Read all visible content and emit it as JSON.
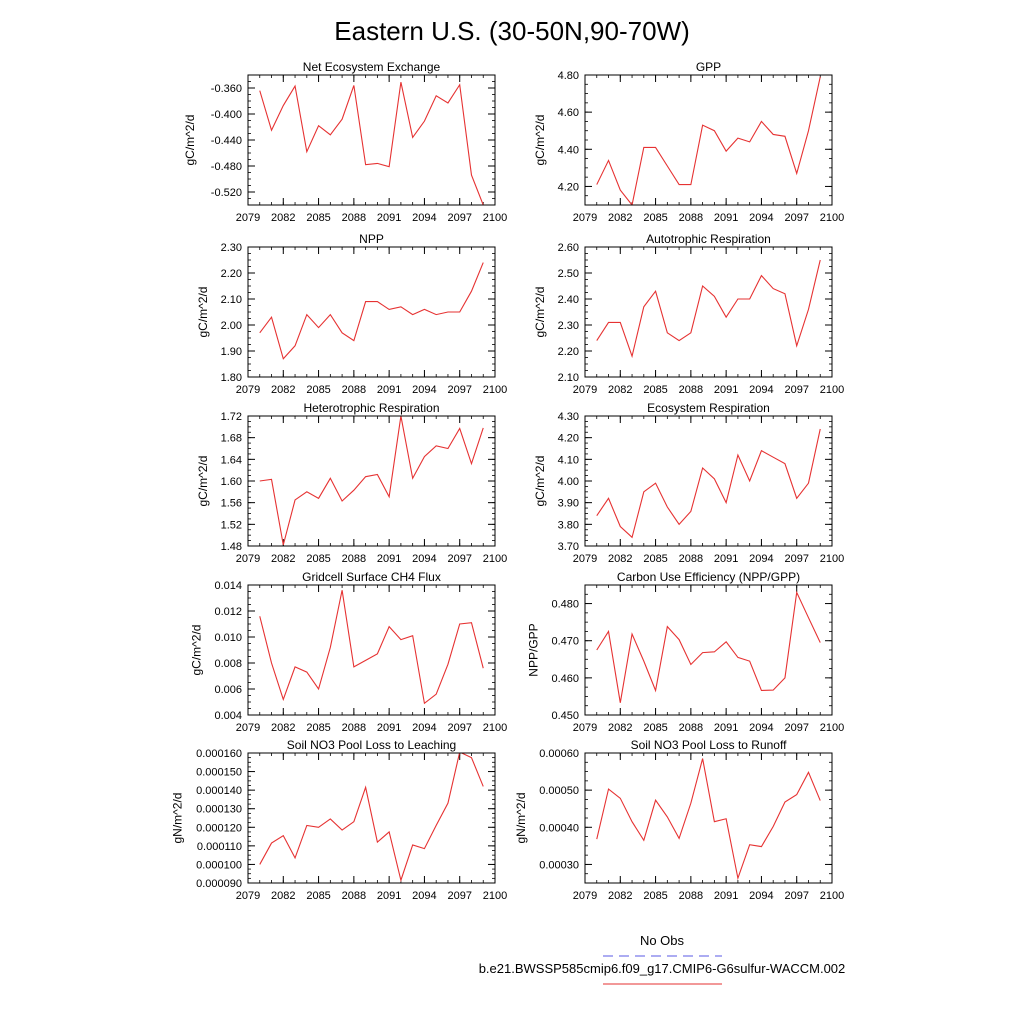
{
  "figure": {
    "title": "Eastern U.S. (30-50N,90-70W)",
    "legend": {
      "obs_label": "No Obs",
      "obs_color": "#5a5ae6",
      "model_label": "b.e21.BWSSP585cmip6.f09_g17.CMIP6-G6sulfur-WACCM.002",
      "model_color": "#e63232"
    }
  },
  "chart_data": [
    {
      "type": "line",
      "title": "Net Ecosystem Exchange",
      "ylabel": "gC/m^2/d",
      "xlim": [
        2079,
        2100
      ],
      "xticks": [
        "2079",
        "2082",
        "2085",
        "2088",
        "2091",
        "2094",
        "2097",
        "2100"
      ],
      "ylim": [
        -0.54,
        -0.34
      ],
      "yticks": [
        "-0.360",
        "-0.400",
        "-0.440",
        "-0.480",
        "-0.520"
      ],
      "series": [
        {
          "x": [
            2080,
            2081,
            2082,
            2083,
            2084,
            2085,
            2086,
            2087,
            2088,
            2089,
            2090,
            2091,
            2092,
            2093,
            2094,
            2095,
            2096,
            2097,
            2098,
            2099
          ],
          "y": [
            -0.364,
            -0.425,
            -0.387,
            -0.357,
            -0.458,
            -0.418,
            -0.432,
            -0.408,
            -0.356,
            -0.478,
            -0.476,
            -0.481,
            -0.351,
            -0.436,
            -0.411,
            -0.372,
            -0.383,
            -0.355,
            -0.494,
            -0.54
          ]
        }
      ]
    },
    {
      "type": "line",
      "title": "GPP",
      "ylabel": "gC/m^2/d",
      "xlim": [
        2079,
        2100
      ],
      "xticks": [
        "2079",
        "2082",
        "2085",
        "2088",
        "2091",
        "2094",
        "2097",
        "2100"
      ],
      "ylim": [
        4.1,
        4.8
      ],
      "yticks": [
        "4.20",
        "4.40",
        "4.60",
        "4.80"
      ],
      "series": [
        {
          "x": [
            2080,
            2081,
            2082,
            2083,
            2084,
            2085,
            2086,
            2087,
            2088,
            2089,
            2090,
            2091,
            2092,
            2093,
            2094,
            2095,
            2096,
            2097,
            2098,
            2099
          ],
          "y": [
            4.21,
            4.34,
            4.18,
            4.1,
            4.41,
            4.41,
            4.31,
            4.21,
            4.21,
            4.53,
            4.5,
            4.39,
            4.46,
            4.44,
            4.55,
            4.48,
            4.47,
            4.27,
            4.5,
            4.79
          ]
        }
      ]
    },
    {
      "type": "line",
      "title": "NPP",
      "ylabel": "gC/m^2/d",
      "xlim": [
        2079,
        2100
      ],
      "xticks": [
        "2079",
        "2082",
        "2085",
        "2088",
        "2091",
        "2094",
        "2097",
        "2100"
      ],
      "ylim": [
        1.8,
        2.3
      ],
      "yticks": [
        "1.80",
        "1.90",
        "2.00",
        "2.10",
        "2.20",
        "2.30"
      ],
      "series": [
        {
          "x": [
            2080,
            2081,
            2082,
            2083,
            2084,
            2085,
            2086,
            2087,
            2088,
            2089,
            2090,
            2091,
            2092,
            2093,
            2094,
            2095,
            2096,
            2097,
            2098,
            2099
          ],
          "y": [
            1.97,
            2.03,
            1.87,
            1.92,
            2.04,
            1.99,
            2.04,
            1.97,
            1.94,
            2.09,
            2.09,
            2.06,
            2.07,
            2.04,
            2.06,
            2.04,
            2.05,
            2.05,
            2.13,
            2.24
          ]
        }
      ]
    },
    {
      "type": "line",
      "title": "Autotrophic Respiration",
      "ylabel": "gC/m^2/d",
      "xlim": [
        2079,
        2100
      ],
      "xticks": [
        "2079",
        "2082",
        "2085",
        "2088",
        "2091",
        "2094",
        "2097",
        "2100"
      ],
      "ylim": [
        2.1,
        2.6
      ],
      "yticks": [
        "2.10",
        "2.20",
        "2.30",
        "2.40",
        "2.50",
        "2.60"
      ],
      "series": [
        {
          "x": [
            2080,
            2081,
            2082,
            2083,
            2084,
            2085,
            2086,
            2087,
            2088,
            2089,
            2090,
            2091,
            2092,
            2093,
            2094,
            2095,
            2096,
            2097,
            2098,
            2099
          ],
          "y": [
            2.24,
            2.31,
            2.31,
            2.18,
            2.37,
            2.43,
            2.27,
            2.24,
            2.27,
            2.45,
            2.41,
            2.33,
            2.4,
            2.4,
            2.49,
            2.44,
            2.42,
            2.22,
            2.36,
            2.55
          ]
        }
      ]
    },
    {
      "type": "line",
      "title": "Heterotrophic Respiration",
      "ylabel": "gC/m^2/d",
      "xlim": [
        2079,
        2100
      ],
      "xticks": [
        "2079",
        "2082",
        "2085",
        "2088",
        "2091",
        "2094",
        "2097",
        "2100"
      ],
      "ylim": [
        1.48,
        1.72
      ],
      "yticks": [
        "1.48",
        "1.52",
        "1.56",
        "1.60",
        "1.64",
        "1.68",
        "1.72"
      ],
      "series": [
        {
          "x": [
            2080,
            2081,
            2082,
            2083,
            2084,
            2085,
            2086,
            2087,
            2088,
            2089,
            2090,
            2091,
            2092,
            2093,
            2094,
            2095,
            2096,
            2097,
            2098,
            2099
          ],
          "y": [
            1.6,
            1.603,
            1.482,
            1.565,
            1.58,
            1.568,
            1.605,
            1.563,
            1.583,
            1.608,
            1.612,
            1.571,
            1.72,
            1.605,
            1.645,
            1.665,
            1.66,
            1.697,
            1.632,
            1.698
          ]
        }
      ]
    },
    {
      "type": "line",
      "title": "Ecosystem Respiration",
      "ylabel": "gC/m^2/d",
      "xlim": [
        2079,
        2100
      ],
      "xticks": [
        "2079",
        "2082",
        "2085",
        "2088",
        "2091",
        "2094",
        "2097",
        "2100"
      ],
      "ylim": [
        3.7,
        4.3
      ],
      "yticks": [
        "3.70",
        "3.80",
        "3.90",
        "4.00",
        "4.10",
        "4.20",
        "4.30"
      ],
      "series": [
        {
          "x": [
            2080,
            2081,
            2082,
            2083,
            2084,
            2085,
            2086,
            2087,
            2088,
            2089,
            2090,
            2091,
            2092,
            2093,
            2094,
            2095,
            2096,
            2097,
            2098,
            2099
          ],
          "y": [
            3.84,
            3.92,
            3.79,
            3.74,
            3.95,
            3.99,
            3.88,
            3.8,
            3.86,
            4.06,
            4.01,
            3.9,
            4.12,
            4.0,
            4.14,
            4.11,
            4.08,
            3.92,
            3.99,
            4.24
          ]
        }
      ]
    },
    {
      "type": "line",
      "title": "Gridcell Surface CH4 Flux",
      "ylabel": "gC/m^2/d",
      "xlim": [
        2079,
        2100
      ],
      "xticks": [
        "2079",
        "2082",
        "2085",
        "2088",
        "2091",
        "2094",
        "2097",
        "2100"
      ],
      "ylim": [
        0.004,
        0.014
      ],
      "yticks": [
        "0.004",
        "0.006",
        "0.008",
        "0.010",
        "0.012",
        "0.014"
      ],
      "series": [
        {
          "x": [
            2080,
            2081,
            2082,
            2083,
            2084,
            2085,
            2086,
            2087,
            2088,
            2089,
            2090,
            2091,
            2092,
            2093,
            2094,
            2095,
            2096,
            2097,
            2098,
            2099
          ],
          "y": [
            0.0116,
            0.008,
            0.0052,
            0.0077,
            0.0073,
            0.006,
            0.0092,
            0.0136,
            0.0077,
            0.0082,
            0.0087,
            0.0108,
            0.0098,
            0.0101,
            0.0049,
            0.0056,
            0.0079,
            0.011,
            0.0111,
            0.0076
          ]
        }
      ]
    },
    {
      "type": "line",
      "title": "Carbon Use Efficiency (NPP/GPP)",
      "ylabel": "NPP/GPP",
      "xlim": [
        2079,
        2100
      ],
      "xticks": [
        "2079",
        "2082",
        "2085",
        "2088",
        "2091",
        "2094",
        "2097",
        "2100"
      ],
      "ylim": [
        0.45,
        0.485
      ],
      "yticks": [
        "0.450",
        "0.460",
        "0.470",
        "0.480"
      ],
      "series": [
        {
          "x": [
            2080,
            2081,
            2082,
            2083,
            2084,
            2085,
            2086,
            2087,
            2088,
            2089,
            2090,
            2091,
            2092,
            2093,
            2094,
            2095,
            2096,
            2097,
            2098,
            2099
          ],
          "y": [
            0.4675,
            0.4725,
            0.4533,
            0.4718,
            0.4645,
            0.4566,
            0.4738,
            0.4703,
            0.4636,
            0.4668,
            0.467,
            0.4697,
            0.4655,
            0.4645,
            0.4566,
            0.4567,
            0.46,
            0.483,
            0.4762,
            0.4695
          ]
        }
      ]
    },
    {
      "type": "line",
      "title": "Soil NO3 Pool Loss to Leaching",
      "ylabel": "gN/m^2/d",
      "xlim": [
        2079,
        2100
      ],
      "xticks": [
        "2079",
        "2082",
        "2085",
        "2088",
        "2091",
        "2094",
        "2097",
        "2100"
      ],
      "ylim": [
        9e-05,
        0.00016
      ],
      "yticks": [
        "0.000090",
        "0.000100",
        "0.000110",
        "0.000120",
        "0.000130",
        "0.000140",
        "0.000150",
        "0.000160"
      ],
      "series": [
        {
          "x": [
            2080,
            2081,
            2082,
            2083,
            2084,
            2085,
            2086,
            2087,
            2088,
            2089,
            2090,
            2091,
            2092,
            2093,
            2094,
            2095,
            2096,
            2097,
            2098,
            2099
          ],
          "y": [
            0.0001,
            0.0001115,
            0.0001155,
            0.0001035,
            0.000121,
            0.00012,
            0.0001245,
            0.0001185,
            0.000123,
            0.0001415,
            0.000112,
            0.0001175,
            9.15e-05,
            0.0001105,
            0.0001085,
            0.000121,
            0.000133,
            0.0001605,
            0.0001575,
            0.000142
          ]
        }
      ]
    },
    {
      "type": "line",
      "title": "Soil NO3 Pool Loss to Runoff",
      "ylabel": "gN/m^2/d",
      "xlim": [
        2079,
        2100
      ],
      "xticks": [
        "2079",
        "2082",
        "2085",
        "2088",
        "2091",
        "2094",
        "2097",
        "2100"
      ],
      "ylim": [
        0.00025,
        0.0006
      ],
      "yticks": [
        "0.00030",
        "0.00040",
        "0.00050",
        "0.00060"
      ],
      "series": [
        {
          "x": [
            2080,
            2081,
            2082,
            2083,
            2084,
            2085,
            2086,
            2087,
            2088,
            2089,
            2090,
            2091,
            2092,
            2093,
            2094,
            2095,
            2096,
            2097,
            2098,
            2099
          ],
          "y": [
            0.000368,
            0.000503,
            0.000478,
            0.000415,
            0.000365,
            0.000473,
            0.000428,
            0.00037,
            0.000465,
            0.000585,
            0.000415,
            0.000423,
            0.000263,
            0.000353,
            0.000348,
            0.000402,
            0.000468,
            0.000488,
            0.000548,
            0.000472
          ]
        }
      ]
    }
  ]
}
